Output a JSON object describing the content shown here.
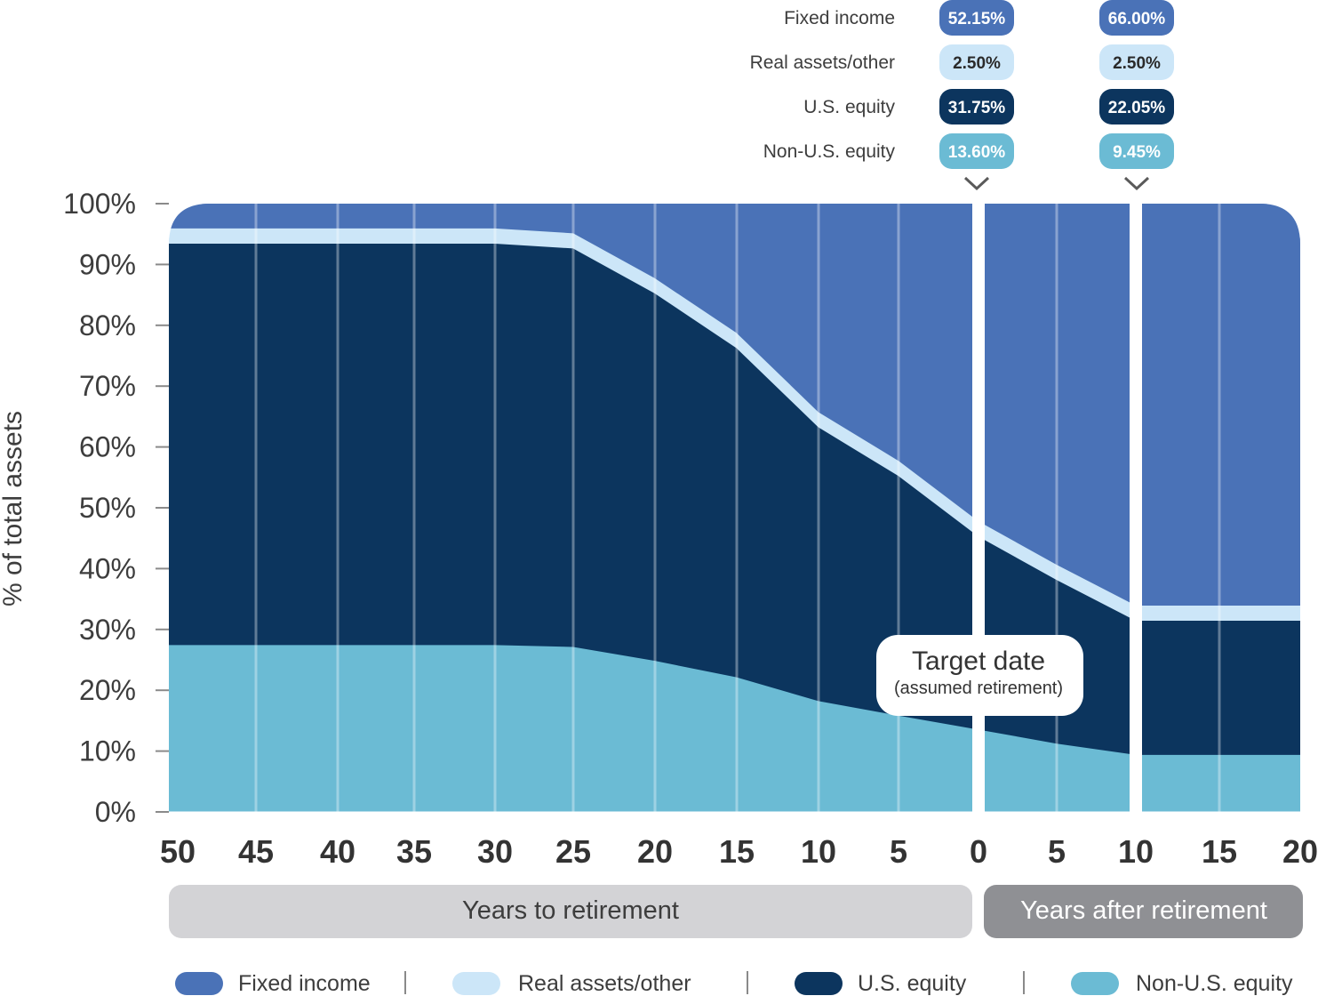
{
  "chart_data": {
    "type": "area",
    "stacked": true,
    "ylabel": "% of total assets",
    "yticks": [
      "0%",
      "10%",
      "20%",
      "30%",
      "40%",
      "50%",
      "60%",
      "70%",
      "80%",
      "90%",
      "100%"
    ],
    "ylim": [
      0,
      100
    ],
    "x_labels": [
      "50",
      "45",
      "40",
      "35",
      "30",
      "25",
      "20",
      "15",
      "10",
      "5",
      "0",
      "5",
      "10",
      "15",
      "20"
    ],
    "x_groups": [
      {
        "label": "Years to retirement",
        "range": [
          "50",
          "0"
        ]
      },
      {
        "label": "Years after retirement",
        "range": [
          "0",
          "20"
        ]
      }
    ],
    "x_values_years_from_target": [
      -50,
      -45,
      -40,
      -35,
      -30,
      -25,
      -20,
      -15,
      -10,
      -5,
      0,
      5,
      10,
      15,
      20
    ],
    "series": [
      {
        "name": "Non-U.S. equity",
        "color": "#6bbbd4",
        "values": [
          27.5,
          27.5,
          27.5,
          27.5,
          27.5,
          27.2,
          24.9,
          22.2,
          18.3,
          15.9,
          13.6,
          11.3,
          9.45,
          9.45,
          9.45
        ]
      },
      {
        "name": "U.S. equity",
        "color": "#0c355e",
        "values": [
          66.0,
          66.0,
          66.0,
          66.0,
          66.0,
          65.5,
          60.4,
          54.1,
          45.0,
          39.4,
          31.75,
          26.9,
          22.05,
          22.05,
          22.05
        ]
      },
      {
        "name": "Real assets/other",
        "color": "#cce6f8",
        "values": [
          2.5,
          2.5,
          2.5,
          2.5,
          2.5,
          2.5,
          2.5,
          2.5,
          2.5,
          2.5,
          2.5,
          2.5,
          2.5,
          2.5,
          2.5
        ]
      },
      {
        "name": "Fixed income",
        "color": "#4a72b7",
        "values": [
          4.0,
          4.0,
          4.0,
          4.0,
          4.0,
          4.8,
          12.2,
          21.2,
          34.2,
          42.2,
          52.15,
          59.3,
          66.0,
          66.0,
          66.0
        ]
      }
    ],
    "callouts": [
      {
        "at": "0",
        "values": {
          "Fixed income": "52.15%",
          "Real assets/other": "2.50%",
          "U.S. equity": "31.75%",
          "Non-U.S. equity": "13.60%"
        }
      },
      {
        "at": "10",
        "values": {
          "Fixed income": "66.00%",
          "Real assets/other": "2.50%",
          "U.S. equity": "22.05%",
          "Non-U.S. equity": "9.45%"
        }
      }
    ],
    "callout_rows": [
      "Fixed income",
      "Real assets/other",
      "U.S. equity",
      "Non-U.S. equity"
    ],
    "target_label": {
      "title": "Target date",
      "subtitle": "(assumed retirement)"
    },
    "legend": [
      {
        "name": "Fixed income",
        "color": "#4a72b7"
      },
      {
        "name": "Real assets/other",
        "color": "#cce6f8"
      },
      {
        "name": "U.S. equity",
        "color": "#0c355e"
      },
      {
        "name": "Non-U.S. equity",
        "color": "#6bbbd4"
      }
    ],
    "legend_position": "bottom",
    "grid": true
  }
}
